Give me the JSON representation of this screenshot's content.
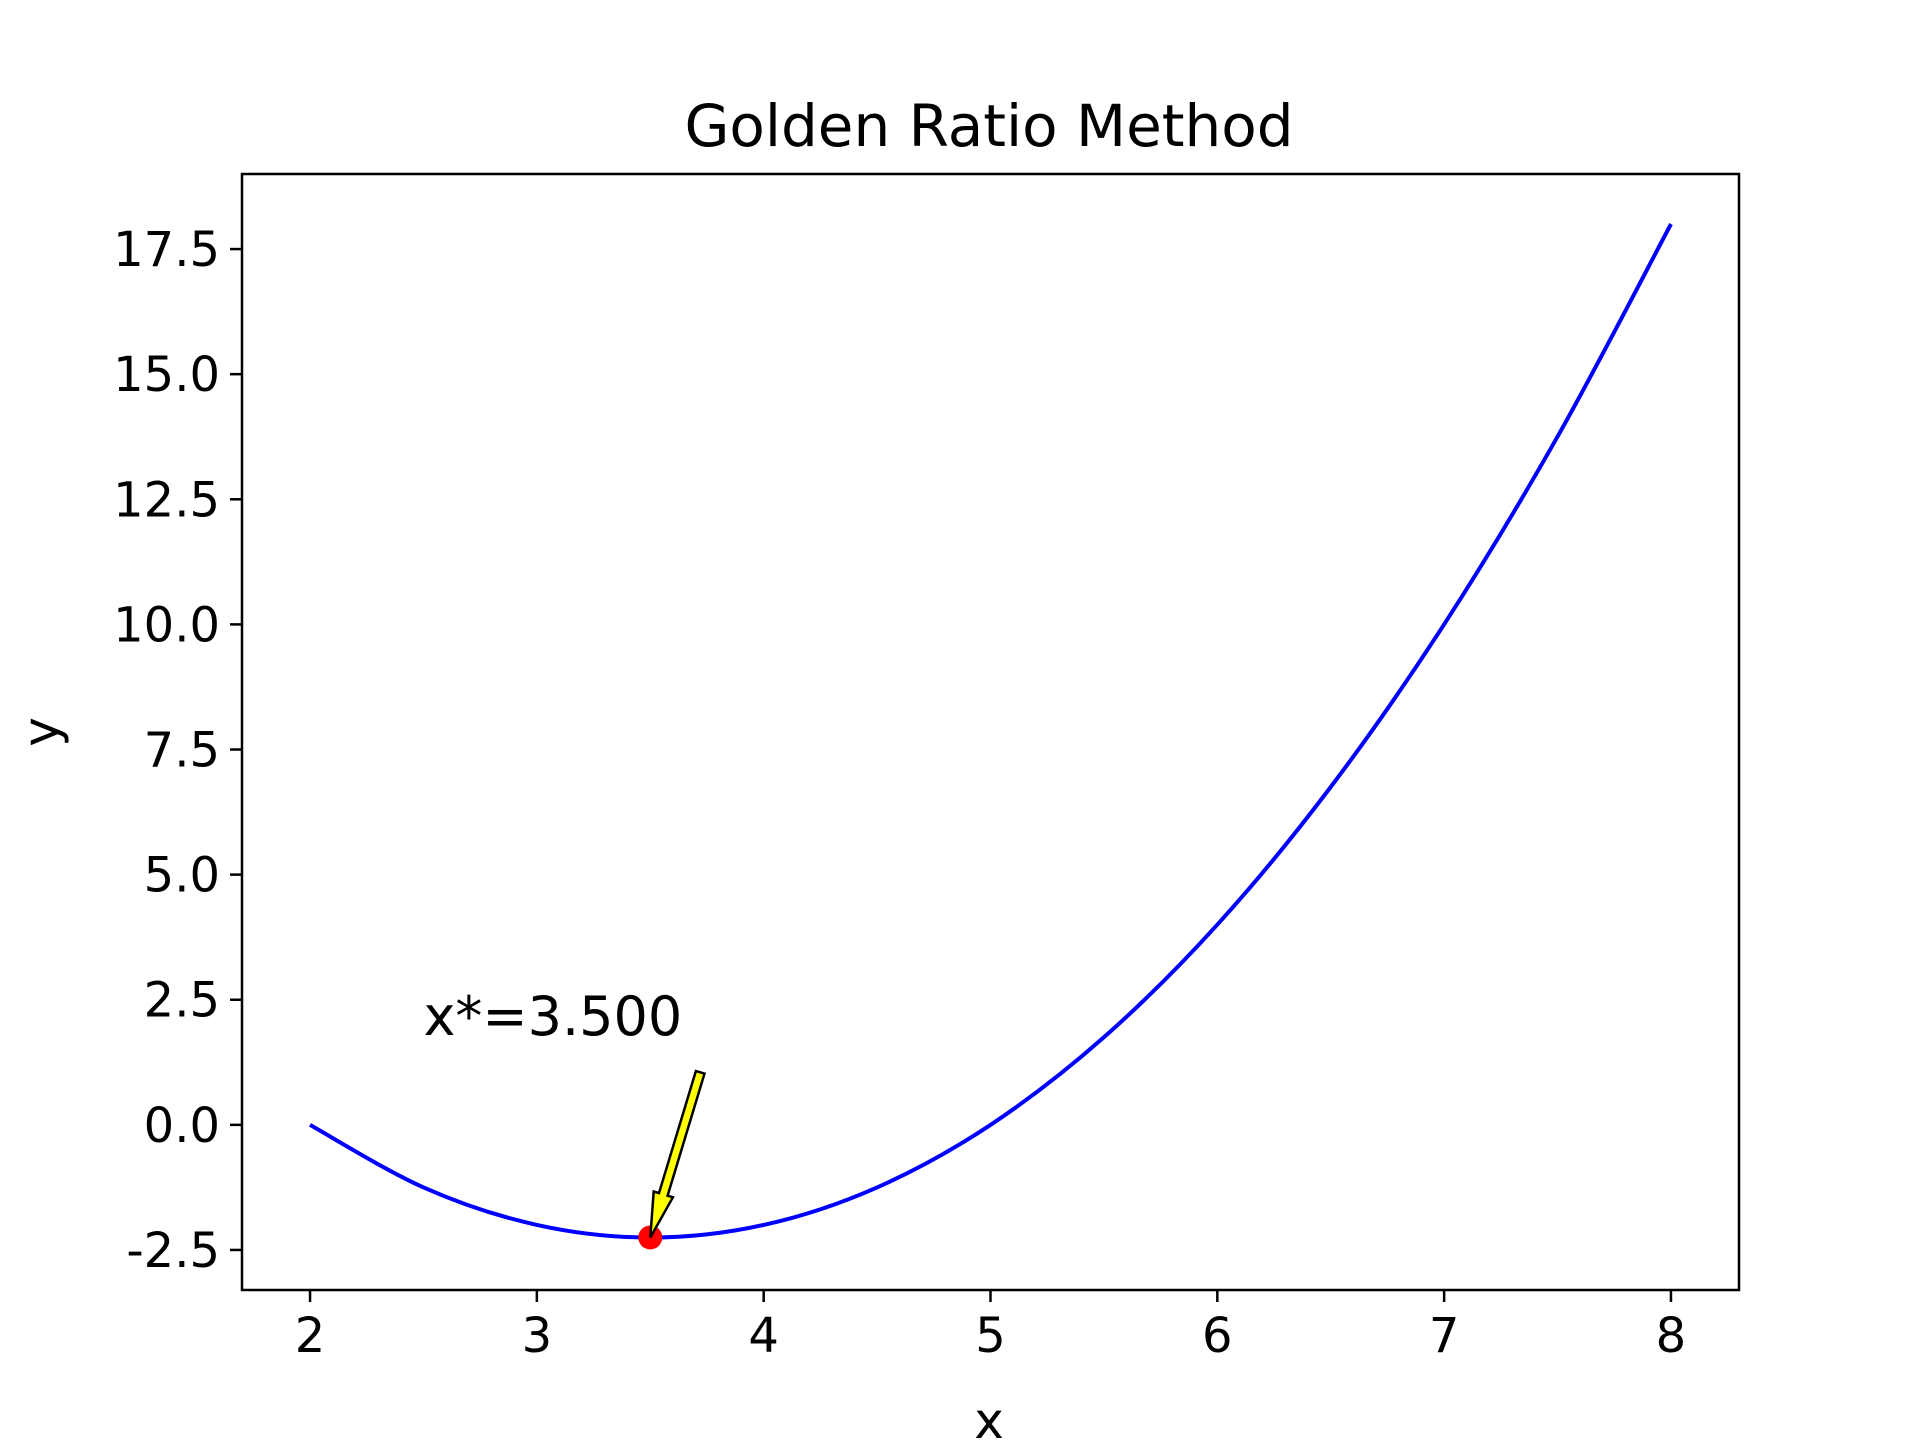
{
  "chart_data": {
    "type": "line",
    "title": "Golden Ratio Method",
    "xlabel": "x",
    "ylabel": "y",
    "xlim": [
      1.7,
      8.3
    ],
    "ylim": [
      -3.3,
      19.0
    ],
    "x_ticks": [
      2,
      3,
      4,
      5,
      6,
      7,
      8
    ],
    "x_tick_labels": [
      "2",
      "3",
      "4",
      "5",
      "6",
      "7",
      "8"
    ],
    "y_ticks": [
      -2.5,
      0.0,
      2.5,
      5.0,
      7.5,
      10.0,
      12.5,
      15.0,
      17.5
    ],
    "y_tick_labels": [
      "-2.5",
      "0.0",
      "2.5",
      "5.0",
      "7.5",
      "10.0",
      "12.5",
      "15.0",
      "17.5"
    ],
    "grid": false,
    "series": [
      {
        "color": "#0000ff",
        "x": [
          2.0,
          2.5,
          3.0,
          3.5,
          4.0,
          4.5,
          5.0,
          5.5,
          6.0,
          6.5,
          7.0,
          7.5,
          8.0
        ],
        "y": [
          0.0,
          -1.25,
          -2.0,
          -2.25,
          -2.0,
          -1.25,
          0.0,
          1.75,
          4.0,
          6.75,
          10.0,
          13.75,
          18.0
        ]
      }
    ],
    "marker": {
      "x": 3.5,
      "y": -2.25,
      "color": "#ff0000"
    },
    "annotation": {
      "text": "x*=3.500",
      "text_x": 2.5,
      "text_y": 1.8,
      "arrow_tail_x": 3.72,
      "arrow_tail_y": 1.05,
      "arrow_head_x": 3.5,
      "arrow_head_y": -2.25,
      "arrow_color": "#ffff00"
    }
  }
}
